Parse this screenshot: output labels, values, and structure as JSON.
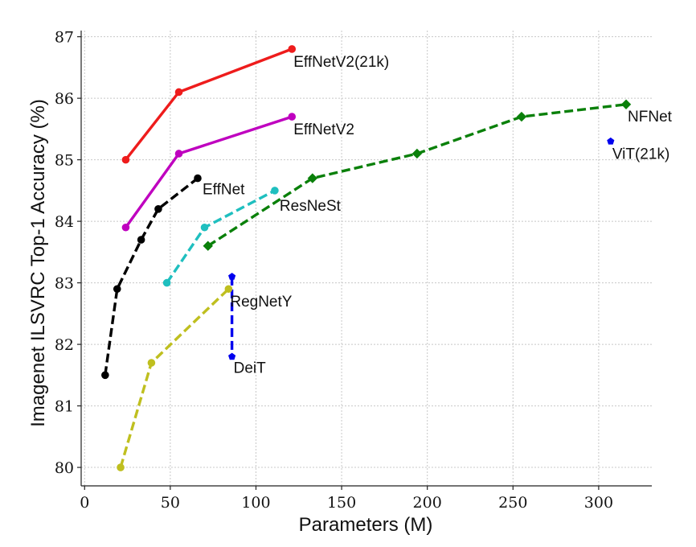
{
  "chart_data": {
    "type": "line",
    "xlabel": "Parameters (M)",
    "ylabel": "Imagenet ILSVRC Top-1 Accuracy (%)",
    "xlim": [
      -2,
      331
    ],
    "ylim": [
      79.7,
      87.1
    ],
    "xticks": [
      0,
      50,
      100,
      150,
      200,
      250,
      300
    ],
    "yticks": [
      80,
      81,
      82,
      83,
      84,
      85,
      86,
      87
    ],
    "grid": true,
    "series": [
      {
        "name": "EffNetV2(21k)",
        "color": "#ee1c1c",
        "dash": "solid",
        "marker": "circle",
        "x": [
          24,
          55,
          121
        ],
        "y": [
          85.0,
          86.1,
          86.8
        ]
      },
      {
        "name": "EffNetV2",
        "color": "#bf00bf",
        "dash": "solid",
        "marker": "circle",
        "x": [
          24,
          55,
          121
        ],
        "y": [
          83.9,
          85.1,
          85.7
        ]
      },
      {
        "name": "EffNet",
        "color": "#000000",
        "dash": "dashed",
        "marker": "circle",
        "x": [
          12,
          19,
          33,
          43,
          66
        ],
        "y": [
          81.5,
          82.9,
          83.7,
          84.2,
          84.7
        ]
      },
      {
        "name": "ResNeSt",
        "color": "#1fbfbf",
        "dash": "dashed",
        "marker": "circle",
        "x": [
          48,
          70,
          111
        ],
        "y": [
          83.0,
          83.9,
          84.5
        ]
      },
      {
        "name": "NFNet",
        "color": "#0a800a",
        "dash": "dashed",
        "marker": "diamond",
        "x": [
          72,
          133,
          194,
          255,
          316
        ],
        "y": [
          83.6,
          84.7,
          85.1,
          85.7,
          85.9
        ]
      },
      {
        "name": "ViT(21k)",
        "color": "#0000ee",
        "dash": "solid",
        "marker": "pentagon",
        "x": [
          307
        ],
        "y": [
          85.3
        ]
      },
      {
        "name": "DeiT",
        "color": "#0000ee",
        "dash": "dashed",
        "marker": "pentagon",
        "x": [
          86,
          86
        ],
        "y": [
          83.1,
          81.8
        ]
      },
      {
        "name": "RegNetY",
        "color": "#bfbf1f",
        "dash": "dashed",
        "marker": "circle",
        "x": [
          21,
          39,
          84
        ],
        "y": [
          80.0,
          81.7,
          82.9
        ]
      }
    ]
  }
}
